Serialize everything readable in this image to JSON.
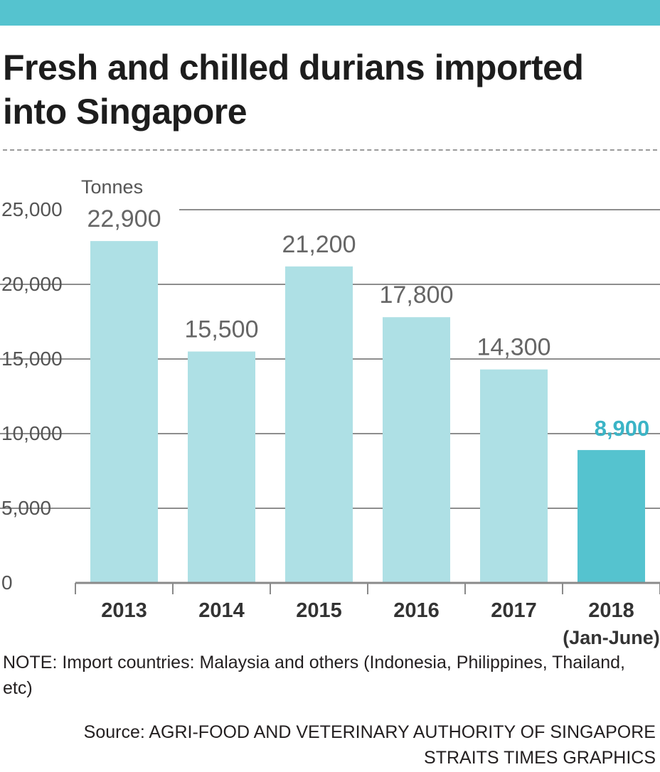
{
  "title": "Fresh and chilled durians imported into Singapore",
  "note": "NOTE: Import countries: Malaysia and others (Indonesia, Philippines, Thailand, etc)",
  "source_line1": "Source: AGRI-FOOD AND VETERINARY AUTHORITY OF SINGAPORE",
  "source_line2": "STRAITS TIMES GRAPHICS",
  "colors": {
    "accent": "#55c3cf",
    "bar": "#aee0e5",
    "highlight_bar": "#55c3cf",
    "highlight_label": "#3bb4c6",
    "grid": "#4a4a4a",
    "text": "#231f20",
    "axis_text": "#555555"
  },
  "chart_data": {
    "type": "bar",
    "unit_label": "Tonnes",
    "categories": [
      "2013",
      "2014",
      "2015",
      "2016",
      "2017",
      "2018"
    ],
    "category_sublabels": [
      "",
      "",
      "",
      "",
      "",
      "(Jan-June)"
    ],
    "values": [
      22900,
      15500,
      21200,
      17800,
      14300,
      8900
    ],
    "value_labels": [
      "22,900",
      "15,500",
      "21,200",
      "17,800",
      "14,300",
      "8,900"
    ],
    "highlight_index": 5,
    "ylim": [
      0,
      25000
    ],
    "yticks": [
      0,
      5000,
      10000,
      15000,
      20000,
      25000
    ],
    "ytick_labels": [
      "0",
      "5,000",
      "10,000",
      "15,000",
      "20,000",
      "25,000"
    ],
    "grid": true
  }
}
